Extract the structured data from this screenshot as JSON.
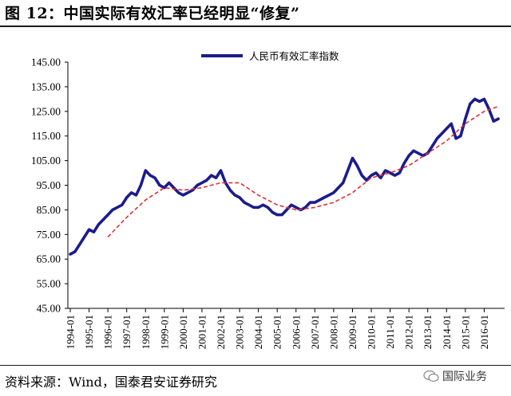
{
  "figure_title": "图 12：中国实际有效汇率已经明显“修复”",
  "source_note": "资料来源：Wind，国泰君安证券研究",
  "watermark": {
    "text": "国际业务",
    "icon": "wechat-icon"
  },
  "colors": {
    "series": "#1c1c8c",
    "trend": "#e03030",
    "axis": "#000000"
  },
  "chart_data": {
    "type": "line",
    "title": "",
    "xlabel": "",
    "ylabel": "",
    "ylim": [
      45,
      145
    ],
    "yticks": [
      "145.00",
      "135.00",
      "125.00",
      "115.00",
      "105.00",
      "95.00",
      "85.00",
      "75.00",
      "65.00",
      "55.00",
      "45.00"
    ],
    "xticks": [
      "1994-01",
      "1995-01",
      "1996-01",
      "1997-01",
      "1998-01",
      "1999-01",
      "2000-01",
      "2001-01",
      "2002-01",
      "2003-01",
      "2004-01",
      "2005-01",
      "2006-01",
      "2007-01",
      "2008-01",
      "2009-01",
      "2010-01",
      "2011-01",
      "2012-01",
      "2013-01",
      "2014-01",
      "2015-01",
      "2016-01"
    ],
    "legend": {
      "position": "top",
      "entries": [
        "人民币有效汇率指数"
      ]
    },
    "grid": false,
    "series": [
      {
        "name": "人民币有效汇率指数",
        "style": "solid",
        "x": [
          "1994-01",
          "1994-04",
          "1994-07",
          "1994-10",
          "1995-01",
          "1995-04",
          "1995-07",
          "1995-10",
          "1996-01",
          "1996-04",
          "1996-07",
          "1996-10",
          "1997-01",
          "1997-04",
          "1997-07",
          "1997-10",
          "1998-01",
          "1998-04",
          "1998-07",
          "1998-10",
          "1999-01",
          "1999-04",
          "1999-07",
          "1999-10",
          "2000-01",
          "2000-04",
          "2000-07",
          "2000-10",
          "2001-01",
          "2001-04",
          "2001-07",
          "2001-10",
          "2002-01",
          "2002-04",
          "2002-07",
          "2002-10",
          "2003-01",
          "2003-04",
          "2003-07",
          "2003-10",
          "2004-01",
          "2004-04",
          "2004-07",
          "2004-10",
          "2005-01",
          "2005-04",
          "2005-07",
          "2005-10",
          "2006-01",
          "2006-04",
          "2006-07",
          "2006-10",
          "2007-01",
          "2007-04",
          "2007-07",
          "2007-10",
          "2008-01",
          "2008-04",
          "2008-07",
          "2008-10",
          "2009-01",
          "2009-04",
          "2009-07",
          "2009-10",
          "2010-01",
          "2010-04",
          "2010-07",
          "2010-10",
          "2011-01",
          "2011-04",
          "2011-07",
          "2011-10",
          "2012-01",
          "2012-04",
          "2012-07",
          "2012-10",
          "2013-01",
          "2013-04",
          "2013-07",
          "2013-10",
          "2014-01",
          "2014-04",
          "2014-07",
          "2014-10",
          "2015-01",
          "2015-04",
          "2015-07",
          "2015-10",
          "2016-01",
          "2016-04",
          "2016-07",
          "2016-10"
        ],
        "values": [
          67,
          68,
          71,
          74,
          77,
          76,
          79,
          81,
          83,
          85,
          86,
          87,
          90,
          92,
          91,
          95,
          101,
          99,
          98,
          95,
          94,
          96,
          94,
          92,
          91,
          92,
          93,
          95,
          96,
          97,
          99,
          98,
          101,
          96,
          93,
          91,
          90,
          88,
          87,
          86,
          86,
          87,
          86,
          84,
          83,
          83,
          85,
          87,
          86,
          85,
          86,
          88,
          88,
          89,
          90,
          91,
          92,
          94,
          96,
          101,
          106,
          103,
          99,
          97,
          99,
          100,
          98,
          101,
          100,
          99,
          100,
          104,
          107,
          109,
          108,
          107,
          108,
          111,
          114,
          116,
          118,
          120,
          114,
          115,
          122,
          128,
          130,
          129,
          130,
          126,
          121,
          122
        ]
      },
      {
        "name": "",
        "style": "dashed-trend",
        "x": [
          "1996-01",
          "1997-01",
          "1998-01",
          "1999-01",
          "2000-01",
          "2001-01",
          "2002-01",
          "2003-01",
          "2004-01",
          "2005-01",
          "2006-01",
          "2007-01",
          "2008-01",
          "2009-01",
          "2010-01",
          "2011-01",
          "2012-01",
          "2013-01",
          "2014-01",
          "2015-01",
          "2016-01",
          "2016-10"
        ],
        "values": [
          74,
          82,
          89,
          94,
          93,
          94,
          96,
          96,
          91,
          87,
          85,
          86,
          88,
          92,
          98,
          100,
          103,
          108,
          113,
          120,
          125,
          127
        ]
      }
    ]
  }
}
